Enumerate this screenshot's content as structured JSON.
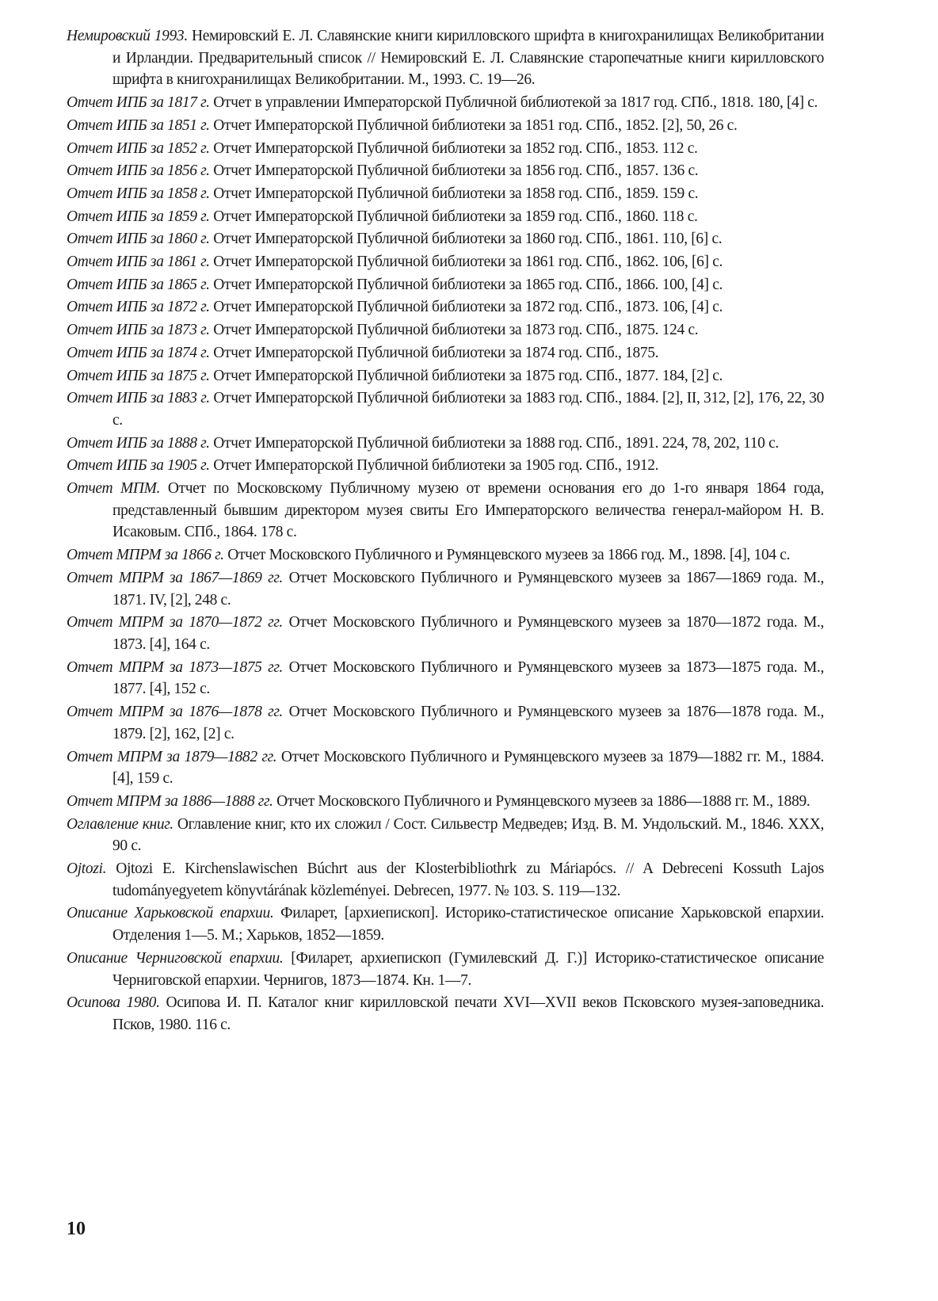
{
  "entries": [
    {
      "label": "Немировский 1993.",
      "text": "Немировский Е. Л. Славянские книги кирилловского шрифта в книгохранилищах Великобритании и Ирландии. Предварительный список // Немировский Е. Л. Славянские старопечатные книги кирилловского шрифта в книгохранилищах Великобритании. М., 1993. С. 19—26."
    },
    {
      "label": "Отчет ИПБ за 1817 г.",
      "text": "Отчет в управлении Императорской Публичной библиотекой за 1817 год. СПб., 1818. 180, [4] с."
    },
    {
      "label": "Отчет ИПБ за 1851 г.",
      "text": "Отчет Императорской Публичной библиотеки за 1851 год. СПб., 1852. [2], 50, 26 с."
    },
    {
      "label": "Отчет ИПБ за 1852 г.",
      "text": "Отчет Императорской Публичной библиотеки за 1852 год. СПб., 1853. 112 с."
    },
    {
      "label": "Отчет ИПБ за 1856 г.",
      "text": "Отчет Императорской Публичной библиотеки за 1856 год. СПб., 1857. 136 с."
    },
    {
      "label": "Отчет ИПБ за 1858 г.",
      "text": "Отчет Императорской Публичной библиотеки за 1858 год. СПб., 1859. 159 с."
    },
    {
      "label": "Отчет ИПБ за 1859 г.",
      "text": "Отчет Императорской Публичной библиотеки за 1859 год. СПб., 1860. 118 с."
    },
    {
      "label": "Отчет ИПБ за 1860 г.",
      "text": "Отчет Императорской Публичной библиотеки за 1860 год. СПб., 1861. 110, [6] с."
    },
    {
      "label": "Отчет ИПБ за 1861 г.",
      "text": "Отчет Императорской Публичной библиотеки за 1861 год. СПб., 1862. 106, [6] с."
    },
    {
      "label": "Отчет ИПБ за 1865 г.",
      "text": "Отчет Императорской Публичной библиотеки за 1865 год. СПб., 1866. 100, [4] с."
    },
    {
      "label": "Отчет ИПБ за 1872 г.",
      "text": "Отчет Императорской Публичной библиотеки за 1872 год. СПб., 1873. 106, [4] с."
    },
    {
      "label": "Отчет ИПБ за 1873 г.",
      "text": "Отчет Императорской Публичной библиотеки за 1873 год. СПб., 1875. 124 с."
    },
    {
      "label": "Отчет ИПБ за 1874 г.",
      "text": "Отчет Императорской Публичной библиотеки за 1874 год. СПб., 1875."
    },
    {
      "label": "Отчет ИПБ за 1875 г.",
      "text": "Отчет Императорской Публичной библиотеки за 1875 год. СПб., 1877. 184, [2] с."
    },
    {
      "label": "Отчет ИПБ за 1883 г.",
      "text": "Отчет Императорской Публичной библиотеки за 1883 год. СПб., 1884. [2], II, 312, [2], 176, 22, 30 с."
    },
    {
      "label": "Отчет ИПБ за 1888 г.",
      "text": "Отчет Императорской Публичной библиотеки за 1888 год. СПб., 1891. 224, 78, 202, 110 с."
    },
    {
      "label": "Отчет ИПБ за 1905 г.",
      "text": "Отчет Императорской Публичной библиотеки за 1905 год. СПб., 1912."
    },
    {
      "label": "Отчет МПМ.",
      "text": "Отчет по Московскому Публичному музею от времени основания его до 1-го января 1864 года, представленный бывшим директором музея свиты Его Императорского величества генерал-майором Н. В. Исаковым. СПб., 1864. 178 с."
    },
    {
      "label": "Отчет МПРМ за 1866 г.",
      "text": "Отчет Московского Публичного и Румянцевского музеев за 1866 год. М., 1898. [4], 104 с."
    },
    {
      "label": "Отчет МПРМ за 1867—1869 гг.",
      "text": "Отчет Московского Публичного и Румянцевского музеев за 1867—1869 года. М., 1871. IV, [2], 248 с."
    },
    {
      "label": "Отчет МПРМ за 1870—1872 гг.",
      "text": "Отчет Московского Публичного и Румянцевского музеев за 1870—1872 года. М., 1873. [4], 164 с."
    },
    {
      "label": "Отчет МПРМ за 1873—1875 гг.",
      "text": "Отчет Московского Публичного и Румянцевского музеев за 1873—1875 года. М., 1877. [4], 152 с."
    },
    {
      "label": "Отчет МПРМ за 1876—1878 гг.",
      "text": "Отчет Московского Публичного и Румянцевского музеев за 1876—1878 года. М., 1879. [2], 162, [2] с."
    },
    {
      "label": "Отчет МПРМ за 1879—1882 гг.",
      "text": "Отчет Московского Публичного и Румянцевского музеев за 1879—1882 гг. М., 1884. [4], 159 с."
    },
    {
      "label": "Отчет МПРМ за 1886—1888 гг.",
      "text": "Отчет Московского Публичного и Румянцевского музеев за 1886—1888 гг. М., 1889."
    },
    {
      "label": "Оглавление книг.",
      "text": "Оглавление книг, кто их сложил / Сост. Сильвестр Медведев; Изд. В. М. Ундольский. М., 1846. XXX, 90 с."
    },
    {
      "label": "Ojtozi.",
      "text": "Ojtozi E. Kirchenslawischen Búchrt aus der Klosterbibliothrk zu Máriapócs. // A Debreceni Kossuth Lajos tudományegyetem könyvtárának közleményei. Debrecen, 1977. № 103. S. 119—132."
    },
    {
      "label": "Описание Харьковской епархии.",
      "text": "Филарет, [архиепископ]. Историко-статистическое описание Харьковской епархии. Отделения 1—5. М.; Харьков, 1852—1859."
    },
    {
      "label": "Описание Черниговской епархии.",
      "text": "[Филарет, архиепископ (Гумилевский Д. Г.)] Историко-статистическое описание Черниговской епархии. Чернигов, 1873—1874. Кн. 1—7."
    },
    {
      "label": "Осипова 1980.",
      "text": "Осипова И. П. Каталог книг кирилловской печати XVI—XVII веков Псковского музея-заповедника. Псков, 1980. 116 с."
    }
  ],
  "page_number": "10"
}
